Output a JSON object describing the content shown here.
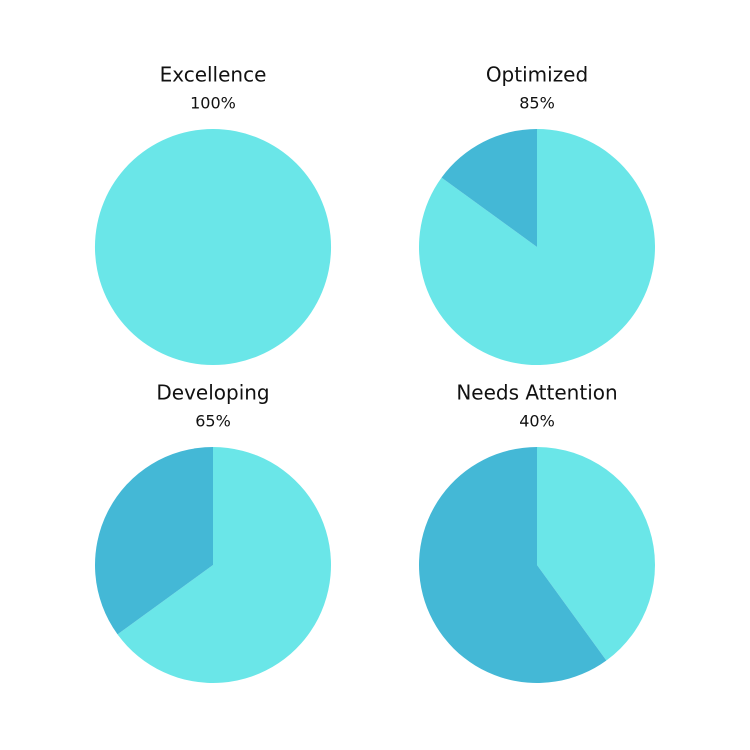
{
  "chart_data": [
    {
      "type": "pie",
      "title": "Excellence",
      "categories": [
        "Excellence",
        null
      ],
      "values": [
        100,
        0
      ],
      "value_labels": [
        "100%",
        null
      ],
      "colors": [
        "#6ae6e8",
        "#44b8d6"
      ]
    },
    {
      "type": "pie",
      "title": "Optimized",
      "categories": [
        "Optimized",
        null
      ],
      "values": [
        85,
        15
      ],
      "value_labels": [
        "85%",
        null
      ],
      "colors": [
        "#6ae6e8",
        "#44b8d6"
      ]
    },
    {
      "type": "pie",
      "title": "Developing",
      "categories": [
        "Developing",
        null
      ],
      "values": [
        65,
        35
      ],
      "value_labels": [
        "65%",
        null
      ],
      "colors": [
        "#6ae6e8",
        "#44b8d6"
      ]
    },
    {
      "type": "pie",
      "title": "Needs Attention",
      "categories": [
        "Needs Attention",
        null
      ],
      "values": [
        40,
        60
      ],
      "value_labels": [
        "40%",
        null
      ],
      "colors": [
        "#6ae6e8",
        "#44b8d6"
      ]
    }
  ]
}
